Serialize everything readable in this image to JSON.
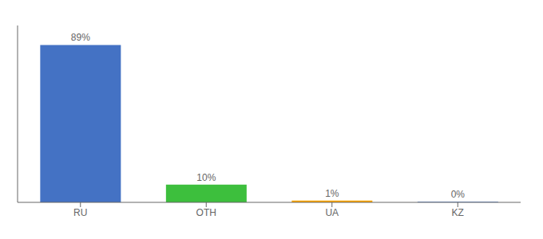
{
  "chart_data": {
    "type": "bar",
    "categories": [
      "RU",
      "OTH",
      "UA",
      "KZ"
    ],
    "values": [
      89,
      10,
      1,
      0.3
    ],
    "value_labels": [
      "89%",
      "10%",
      "1%",
      "0%"
    ],
    "colors": [
      "#4472C4",
      "#3DBF3D",
      "#FFA500",
      "#4472C4"
    ],
    "ylim": [
      0,
      100
    ],
    "data_labels": true,
    "tick_labels": "x",
    "grid": false
  }
}
